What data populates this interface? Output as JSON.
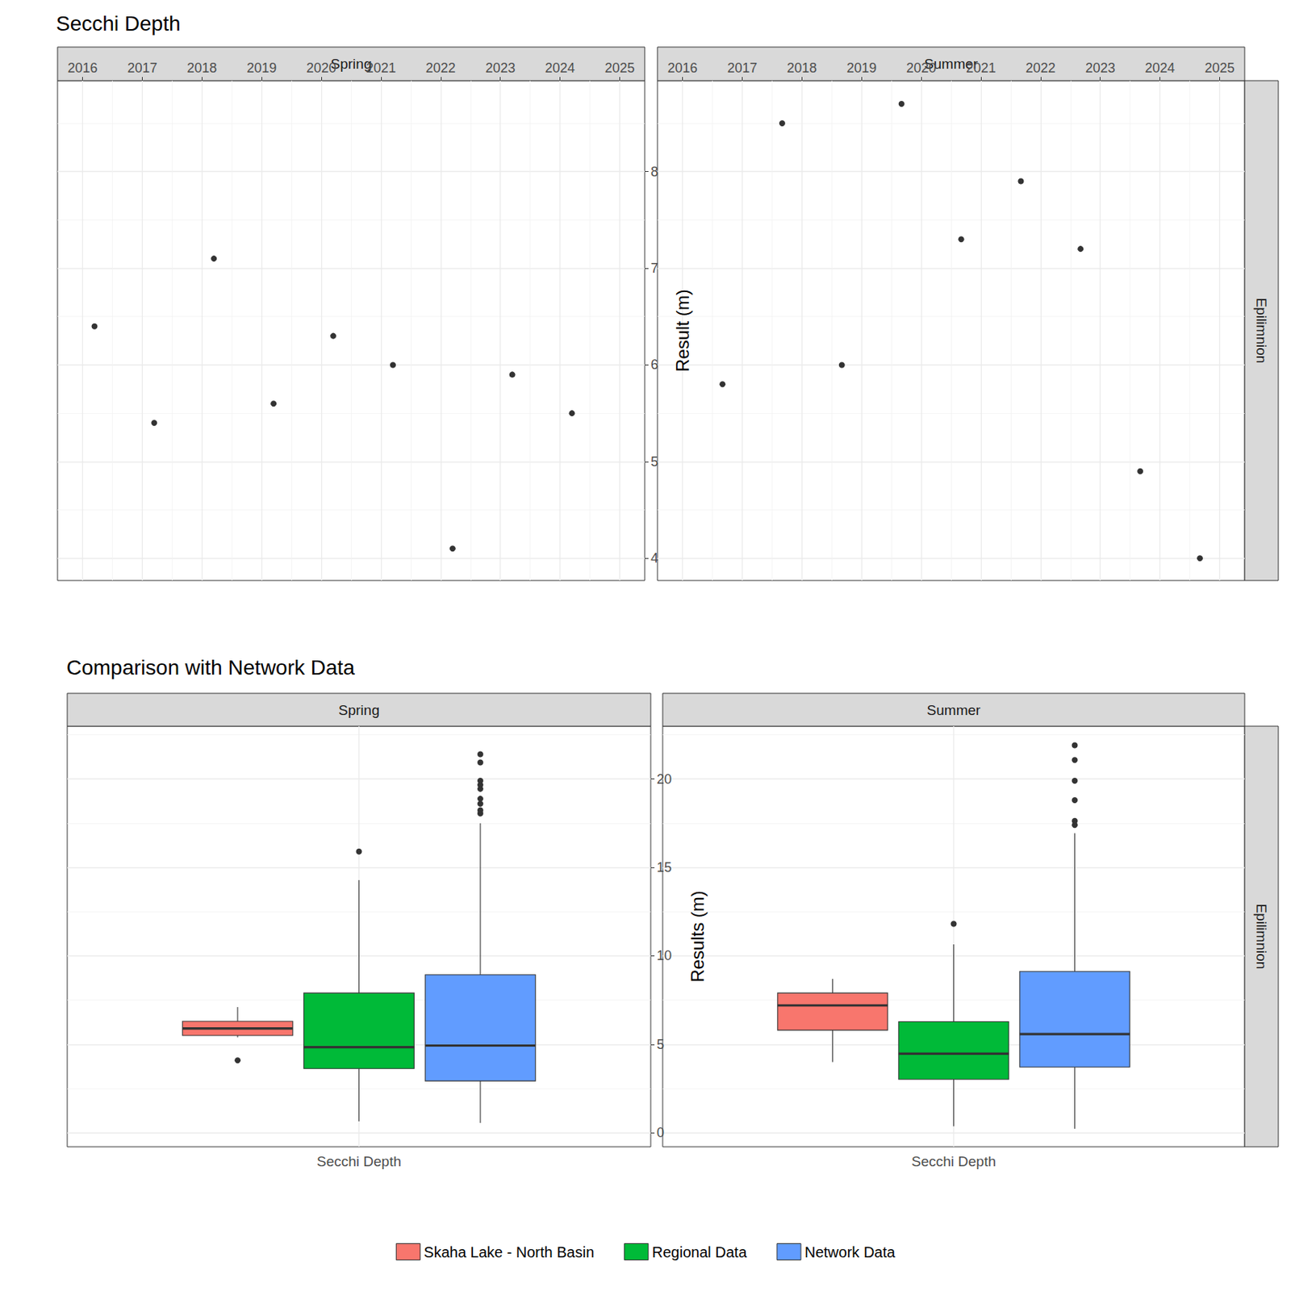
{
  "chart_data": [
    {
      "type": "scatter",
      "title": "Secchi Depth",
      "y_label": "Result (m)",
      "strip": "Epilimnion",
      "color": "#000000",
      "marker": "circle",
      "grid": true,
      "xlim": [
        2015.58,
        2025.42
      ],
      "xticks": [
        2016,
        2017,
        2018,
        2019,
        2020,
        2021,
        2022,
        2023,
        2024,
        2025
      ],
      "ylim": [
        3.77,
        8.94
      ],
      "yticks": [
        4,
        5,
        6,
        7,
        8
      ],
      "panels": [
        {
          "name": "Spring",
          "x": [
            2016.2,
            2017.2,
            2018.2,
            2019.2,
            2020.2,
            2021.2,
            2022.2,
            2023.2,
            2024.2
          ],
          "values": [
            6.4,
            5.4,
            7.1,
            5.6,
            6.3,
            6.0,
            4.1,
            5.9,
            5.5
          ]
        },
        {
          "name": "Summer",
          "x": [
            2016.67,
            2017.67,
            2018.67,
            2019.67,
            2020.67,
            2021.67,
            2022.67,
            2023.67,
            2024.67
          ],
          "values": [
            5.8,
            8.5,
            6.0,
            8.7,
            7.3,
            7.9,
            7.2,
            4.9,
            4.0
          ]
        }
      ]
    },
    {
      "type": "boxplot",
      "title": "Comparison with Network Data",
      "y_label": "Results (m)",
      "strip": "Epilimnion",
      "panels": [
        "Spring",
        "Summer"
      ],
      "categories": [
        "Secchi Depth"
      ],
      "grid": true,
      "legend": "bottom",
      "ylim": [
        -0.79,
        22.98
      ],
      "yticks": [
        0,
        5,
        10,
        15,
        20
      ],
      "series": [
        {
          "name": "Skaha Lake - North Basin",
          "color": "#F8766D",
          "values": [
            [
              5.4,
              5.5,
              5.9,
              6.3,
              7.1
            ],
            [
              4.0,
              5.8,
              7.2,
              7.9,
              8.7
            ]
          ],
          "outliers": [
            [
              4.1
            ],
            []
          ]
        },
        {
          "name": "Regional Data",
          "color": "#00BA38",
          "values": [
            [
              0.65,
              3.63,
              4.84,
              7.9,
              14.28
            ],
            [
              0.37,
              3.02,
              4.47,
              6.28,
              10.65
            ]
          ],
          "outliers": [
            [
              15.9
            ],
            [
              11.81
            ]
          ]
        },
        {
          "name": "Network Data",
          "color": "#619CFF",
          "values": [
            [
              0.56,
              2.93,
              4.93,
              8.93,
              17.49
            ],
            [
              0.23,
              3.72,
              5.58,
              9.12,
              16.93
            ]
          ],
          "outliers": [
            [
              18.05,
              18.23,
              18.6,
              18.88,
              19.44,
              19.67,
              19.9,
              20.93,
              21.4
            ],
            [
              17.4,
              17.63,
              18.8,
              19.9,
              21.07,
              21.9
            ]
          ]
        }
      ]
    }
  ]
}
